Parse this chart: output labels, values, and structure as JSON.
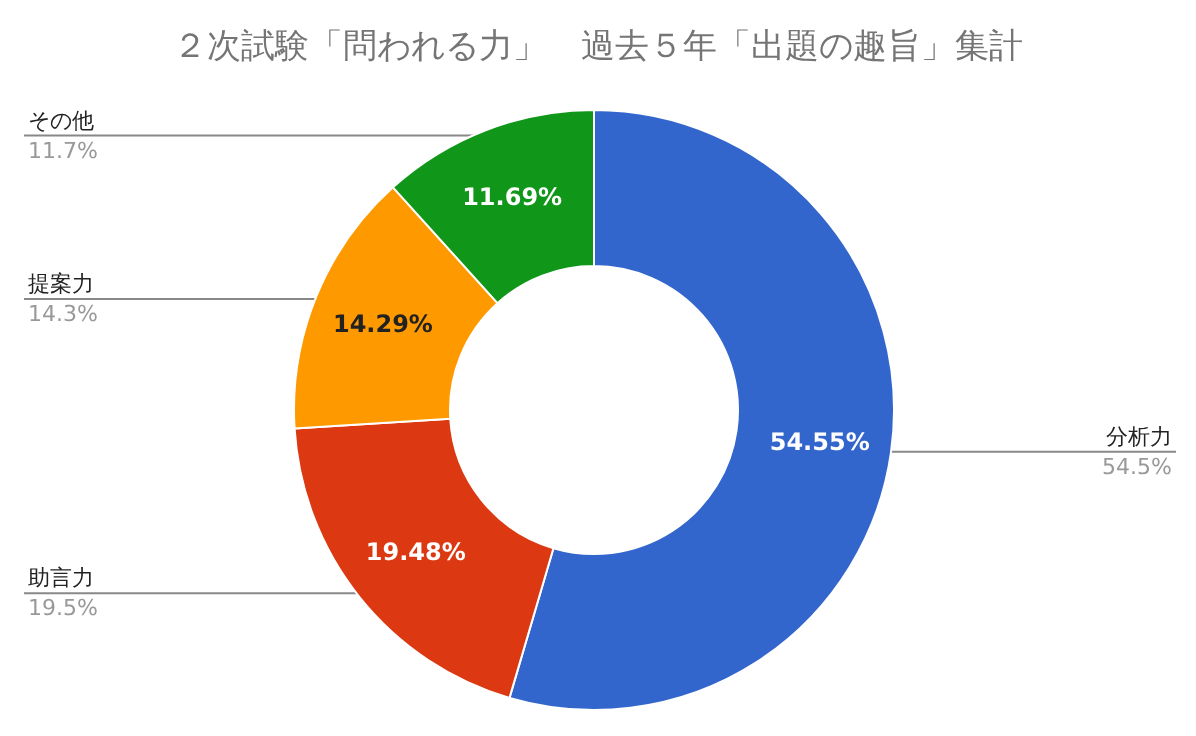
{
  "chart_data": {
    "type": "donut",
    "title": "２次試験「問われる力」　過去５年「出題の趣旨」集計",
    "categories": [
      "分析力",
      "助言力",
      "提案力",
      "その他"
    ],
    "values": [
      54.55,
      19.48,
      14.29,
      11.69
    ],
    "colors": [
      "#3366cc",
      "#dc3912",
      "#ff9900",
      "#109618"
    ],
    "value_labels": [
      "54.55%",
      "19.48%",
      "14.29%",
      "11.69%"
    ],
    "annotations": [
      "54.5%",
      "19.5%",
      "14.3%",
      "11.7%"
    ],
    "legend": false
  }
}
